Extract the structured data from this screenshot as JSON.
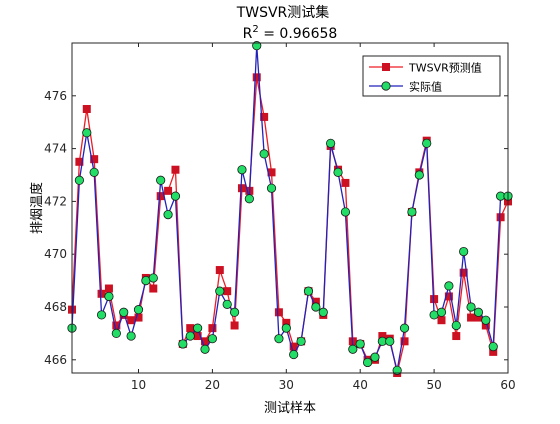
{
  "chart_data": {
    "type": "line",
    "title": "TWSVR测试集",
    "subtitle": "R² = 0.96658",
    "xlabel": "测试样本",
    "ylabel": "排烟温度",
    "xlim": [
      1,
      60
    ],
    "ylim": [
      465.5,
      478
    ],
    "xticks": [
      10,
      20,
      30,
      40,
      50,
      60
    ],
    "yticks": [
      466,
      468,
      470,
      472,
      474,
      476
    ],
    "grid": false,
    "legend_position": "top-right",
    "x": [
      1,
      2,
      3,
      4,
      5,
      6,
      7,
      8,
      9,
      10,
      11,
      12,
      13,
      14,
      15,
      16,
      17,
      18,
      19,
      20,
      21,
      22,
      23,
      24,
      25,
      26,
      27,
      28,
      29,
      30,
      31,
      32,
      33,
      34,
      35,
      36,
      37,
      38,
      39,
      40,
      41,
      42,
      43,
      44,
      45,
      46,
      47,
      48,
      49,
      50,
      51,
      52,
      53,
      54,
      55,
      56,
      57,
      58,
      59,
      60
    ],
    "series": [
      {
        "name": "TWSVR预测值",
        "color": "#ee1c24",
        "marker": "square",
        "values": [
          467.9,
          473.5,
          475.5,
          473.6,
          468.5,
          468.7,
          467.3,
          467.7,
          467.5,
          467.6,
          469.1,
          468.7,
          472.2,
          472.4,
          473.2,
          466.6,
          467.2,
          466.9,
          466.7,
          467.2,
          469.4,
          468.6,
          467.3,
          472.5,
          472.4,
          476.7,
          475.2,
          473.1,
          467.8,
          467.4,
          466.5,
          466.7,
          468.6,
          468.2,
          467.7,
          474.1,
          473.2,
          472.7,
          466.7,
          466.6,
          466.0,
          466.0,
          466.9,
          466.8,
          465.5,
          466.7,
          471.6,
          473.1,
          474.3,
          468.3,
          467.5,
          468.4,
          466.9,
          469.3,
          467.6,
          467.6,
          467.3,
          466.3,
          471.4,
          472.0
        ]
      },
      {
        "name": "实际值",
        "color": "#2222bb",
        "marker": "circle",
        "marker_fill": "#22dd66",
        "values": [
          467.2,
          472.8,
          474.6,
          473.1,
          467.7,
          468.4,
          467.0,
          467.8,
          466.9,
          467.9,
          469.0,
          469.1,
          472.8,
          471.5,
          472.2,
          466.6,
          466.9,
          467.2,
          466.4,
          466.8,
          468.6,
          468.1,
          467.8,
          473.2,
          472.1,
          477.9,
          473.8,
          472.5,
          466.8,
          467.2,
          466.2,
          466.7,
          468.6,
          468.0,
          467.8,
          474.2,
          473.1,
          471.6,
          466.4,
          466.6,
          465.9,
          466.1,
          466.7,
          466.7,
          465.6,
          467.2,
          471.6,
          473.0,
          474.2,
          467.7,
          467.8,
          468.8,
          467.3,
          470.1,
          468.0,
          467.8,
          467.5,
          466.5,
          472.2,
          472.2
        ]
      }
    ]
  }
}
